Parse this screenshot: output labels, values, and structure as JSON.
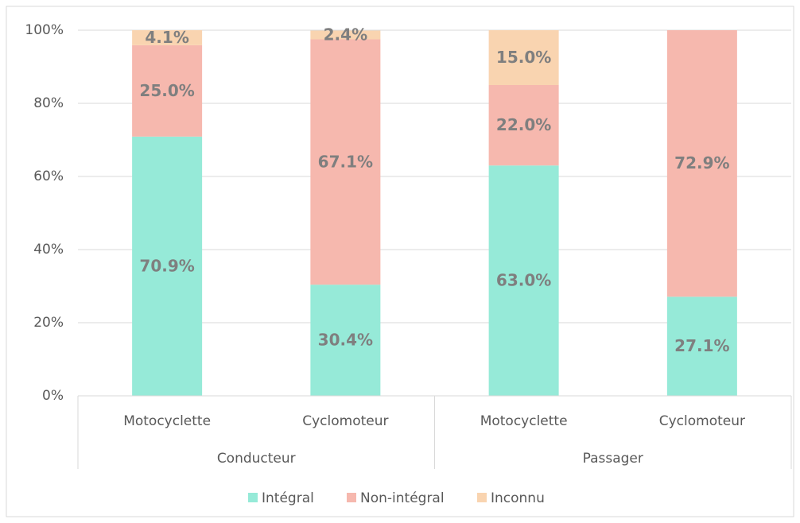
{
  "chart_data": {
    "type": "stacked_bar",
    "groups": [
      "Conducteur",
      "Passager"
    ],
    "categories": [
      "Motocyclette",
      "Cyclomoteur",
      "Motocyclette",
      "Cyclomoteur"
    ],
    "series": [
      {
        "name": "Intégral",
        "color": "#96ead8",
        "values": [
          70.9,
          30.4,
          63.0,
          27.1
        ],
        "value_labels": [
          "70.9%",
          "30.4%",
          "63.0%",
          "27.1%"
        ]
      },
      {
        "name": "Non-intégral",
        "color": "#f6b8ae",
        "values": [
          25.0,
          67.1,
          22.0,
          72.9
        ],
        "value_labels": [
          "25.0%",
          "67.1%",
          "22.0%",
          "72.9%"
        ]
      },
      {
        "name": "Inconnu",
        "color": "#f9d4b0",
        "values": [
          4.1,
          2.4,
          15.0,
          null
        ],
        "value_labels": [
          "4.1%",
          "2.4%",
          "15.0%",
          null
        ]
      }
    ],
    "ylim": [
      0,
      100
    ],
    "yticks": [
      {
        "value": 0,
        "label": "0%"
      },
      {
        "value": 20,
        "label": "20%"
      },
      {
        "value": 40,
        "label": "40%"
      },
      {
        "value": 60,
        "label": "60%"
      },
      {
        "value": 80,
        "label": "80%"
      },
      {
        "value": 100,
        "label": "100%"
      }
    ],
    "grid": true,
    "legend": "bottom"
  }
}
